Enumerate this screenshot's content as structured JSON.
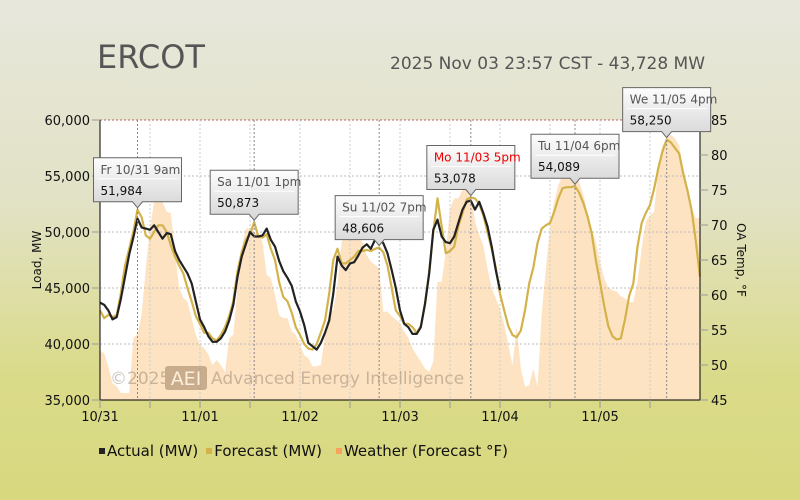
{
  "header": {
    "title": "ERCOT",
    "status": "2025 Nov 03 23:57 CST - 43,728 MW"
  },
  "watermark": {
    "copyright": "©2025",
    "logo": "AEI",
    "company": "Advanced Energy Intelligence"
  },
  "legend": [
    {
      "label": "Actual (MW)",
      "color": "#222222"
    },
    {
      "label": "Forecast (MW)",
      "color": "#d4b24a"
    },
    {
      "label": "Weather (Forecast °F)",
      "color": "#f7a35c"
    }
  ],
  "chart_data": {
    "type": "line",
    "ylabel": "Load, MW",
    "y2label": "OA Temp, °F",
    "ylim": [
      35000,
      60000
    ],
    "y2lim": [
      45,
      85
    ],
    "yticks": [
      "35,000",
      "40,000",
      "45,000",
      "50,000",
      "55,000",
      "60,000"
    ],
    "y2ticks": [
      "45",
      "50",
      "55",
      "60",
      "65",
      "70",
      "75",
      "80",
      "85"
    ],
    "xticks": [
      "10/31",
      "11/01",
      "11/02",
      "11/03",
      "11/04",
      "11/05"
    ],
    "grid": true,
    "legend_position": "bottom",
    "x_step": "hourly",
    "colors": {
      "actual": "#222222",
      "forecast": "#d4b24a",
      "weather": "#fde3c2"
    },
    "series": [
      {
        "name": "Actual (MW)",
        "values": [
          43700,
          43500,
          43000,
          42200,
          42400,
          44000,
          46000,
          48000,
          49500,
          51200,
          50400,
          50300,
          50200,
          50600,
          50000,
          49400,
          49900,
          49800,
          48300,
          47500,
          46900,
          46300,
          45400,
          43800,
          42200,
          41500,
          40700,
          40200,
          40200,
          40500,
          41100,
          42100,
          43500,
          46000,
          47800,
          48900,
          50000,
          49600,
          49600,
          49700,
          50300,
          49300,
          48700,
          47400,
          46500,
          45900,
          45200,
          43800,
          42900,
          41700,
          40100,
          39800,
          39500,
          40100,
          41000,
          42100,
          44500,
          47800,
          47000,
          46600,
          47200,
          47300,
          47900,
          48600,
          48900,
          48500,
          49300,
          49400,
          49000,
          48100,
          46600,
          45000,
          43000,
          41800,
          41500,
          40900,
          40900,
          41500,
          43600,
          46300,
          50200,
          51100,
          49600,
          49100,
          49000,
          49600,
          50800,
          52000,
          52700,
          52800,
          52000,
          52700,
          51700,
          50500,
          48700,
          46600,
          44800
        ]
      },
      {
        "name": "Forecast (MW)",
        "values": [
          43000,
          42300,
          42600,
          42400,
          42600,
          44500,
          47000,
          48500,
          50000,
          51984,
          51300,
          49700,
          49400,
          50000,
          50600,
          50600,
          50000,
          48800,
          47800,
          47000,
          46300,
          45000,
          43800,
          42500,
          41800,
          41000,
          41000,
          40500,
          40300,
          40800,
          41500,
          42500,
          43800,
          46500,
          48200,
          49300,
          49800,
          50873,
          49600,
          49500,
          49800,
          48500,
          47500,
          45500,
          44200,
          43800,
          42800,
          41500,
          40800,
          40000,
          39600,
          39500,
          40000,
          41000,
          42100,
          44500,
          47500,
          48500,
          47200,
          47200,
          47500,
          47800,
          48300,
          48300,
          48400,
          48300,
          48500,
          48606,
          48200,
          47000,
          45000,
          43000,
          42500,
          41800,
          41800,
          41500,
          41000,
          41600,
          43500,
          46500,
          50000,
          53000,
          50500,
          48100,
          48300,
          48700,
          50500,
          51700,
          52900,
          53078,
          53000,
          52500,
          51500,
          50000,
          48500,
          46800,
          44500,
          43000,
          41600,
          40800,
          40600,
          41200,
          43000,
          45400,
          46800,
          49000,
          50300,
          50600,
          50800,
          51800,
          53000,
          53900,
          54000,
          54000,
          54089,
          53500,
          52600,
          51400,
          49900,
          47500,
          45500,
          43400,
          41600,
          40700,
          40400,
          40500,
          42200,
          44300,
          45400,
          48700,
          50800,
          51700,
          52400,
          53900,
          55700,
          57200,
          58250,
          58000,
          57500,
          57000,
          55200,
          53700,
          51900,
          49200,
          46000
        ]
      },
      {
        "name": "Weather (Forecast °F)",
        "values": [
          52,
          51.7,
          49.8,
          47.4,
          47,
          46,
          46,
          46,
          53.9,
          54.4,
          57.2,
          63.9,
          69.6,
          73.3,
          73.8,
          73.3,
          71.9,
          71.7,
          66.2,
          61,
          59.6,
          59,
          56.7,
          54.3,
          52.9,
          52.4,
          51.5,
          50,
          50.7,
          50,
          49,
          53.8,
          54.3,
          61,
          66.7,
          69.5,
          69.5,
          69,
          68.6,
          67.6,
          62.9,
          62.4,
          60,
          57.1,
          56.7,
          56.7,
          54.8,
          54.3,
          52.9,
          51.4,
          51,
          49.8,
          49.8,
          50,
          54.3,
          57.6,
          57.9,
          61.4,
          67.6,
          68.6,
          69,
          68.6,
          68.1,
          67.6,
          65.7,
          64.8,
          64.3,
          63.8,
          57.6,
          57.6,
          57,
          56.5,
          56,
          54.8,
          53.9,
          52.4,
          51.4,
          50.5,
          49.5,
          49,
          50.5,
          61.9,
          61.9,
          66.2,
          72.4,
          73.8,
          73.8,
          75,
          76.2,
          74.8,
          70.5,
          68.6,
          67.1,
          63.8,
          61,
          59.5,
          58.1,
          55.7,
          52.9,
          50,
          55.5,
          49.5,
          46.9,
          47.1,
          49.5,
          46.9,
          57.1,
          63.8,
          69.5,
          73.3,
          75.7,
          77.1,
          77.9,
          77.6,
          77.1,
          76.2,
          74.3,
          71.9,
          69.5,
          67.6,
          64.8,
          62.4,
          61,
          60.7,
          60.5,
          59.8,
          59.5,
          59,
          59,
          61.9,
          66.7,
          70.5,
          71.4,
          71.9,
          78.6,
          81.4,
          82.4,
          82.9,
          82.4,
          81.4,
          77.6,
          74.3,
          72.4,
          71,
          71
        ]
      }
    ],
    "annotations": [
      {
        "label": "Fr 10/31 9am",
        "value": "51,984",
        "time": "10/31 09:00",
        "color": "#555555"
      },
      {
        "label": "Sa 11/01 1pm",
        "value": "50,873",
        "time": "11/01 13:00",
        "color": "#555555"
      },
      {
        "label": "Su 11/02 7pm",
        "value": "48,606",
        "time": "11/02 19:00",
        "color": "#555555"
      },
      {
        "label": "Mo 11/03 5pm",
        "value": "53,078",
        "time": "11/03 17:00",
        "color": "#ee0000"
      },
      {
        "label": "Tu 11/04 6pm",
        "value": "54,089",
        "time": "11/04 18:00",
        "color": "#555555"
      },
      {
        "label": "We 11/05 4pm",
        "value": "58,250",
        "time": "11/05 16:00",
        "color": "#555555"
      }
    ]
  }
}
